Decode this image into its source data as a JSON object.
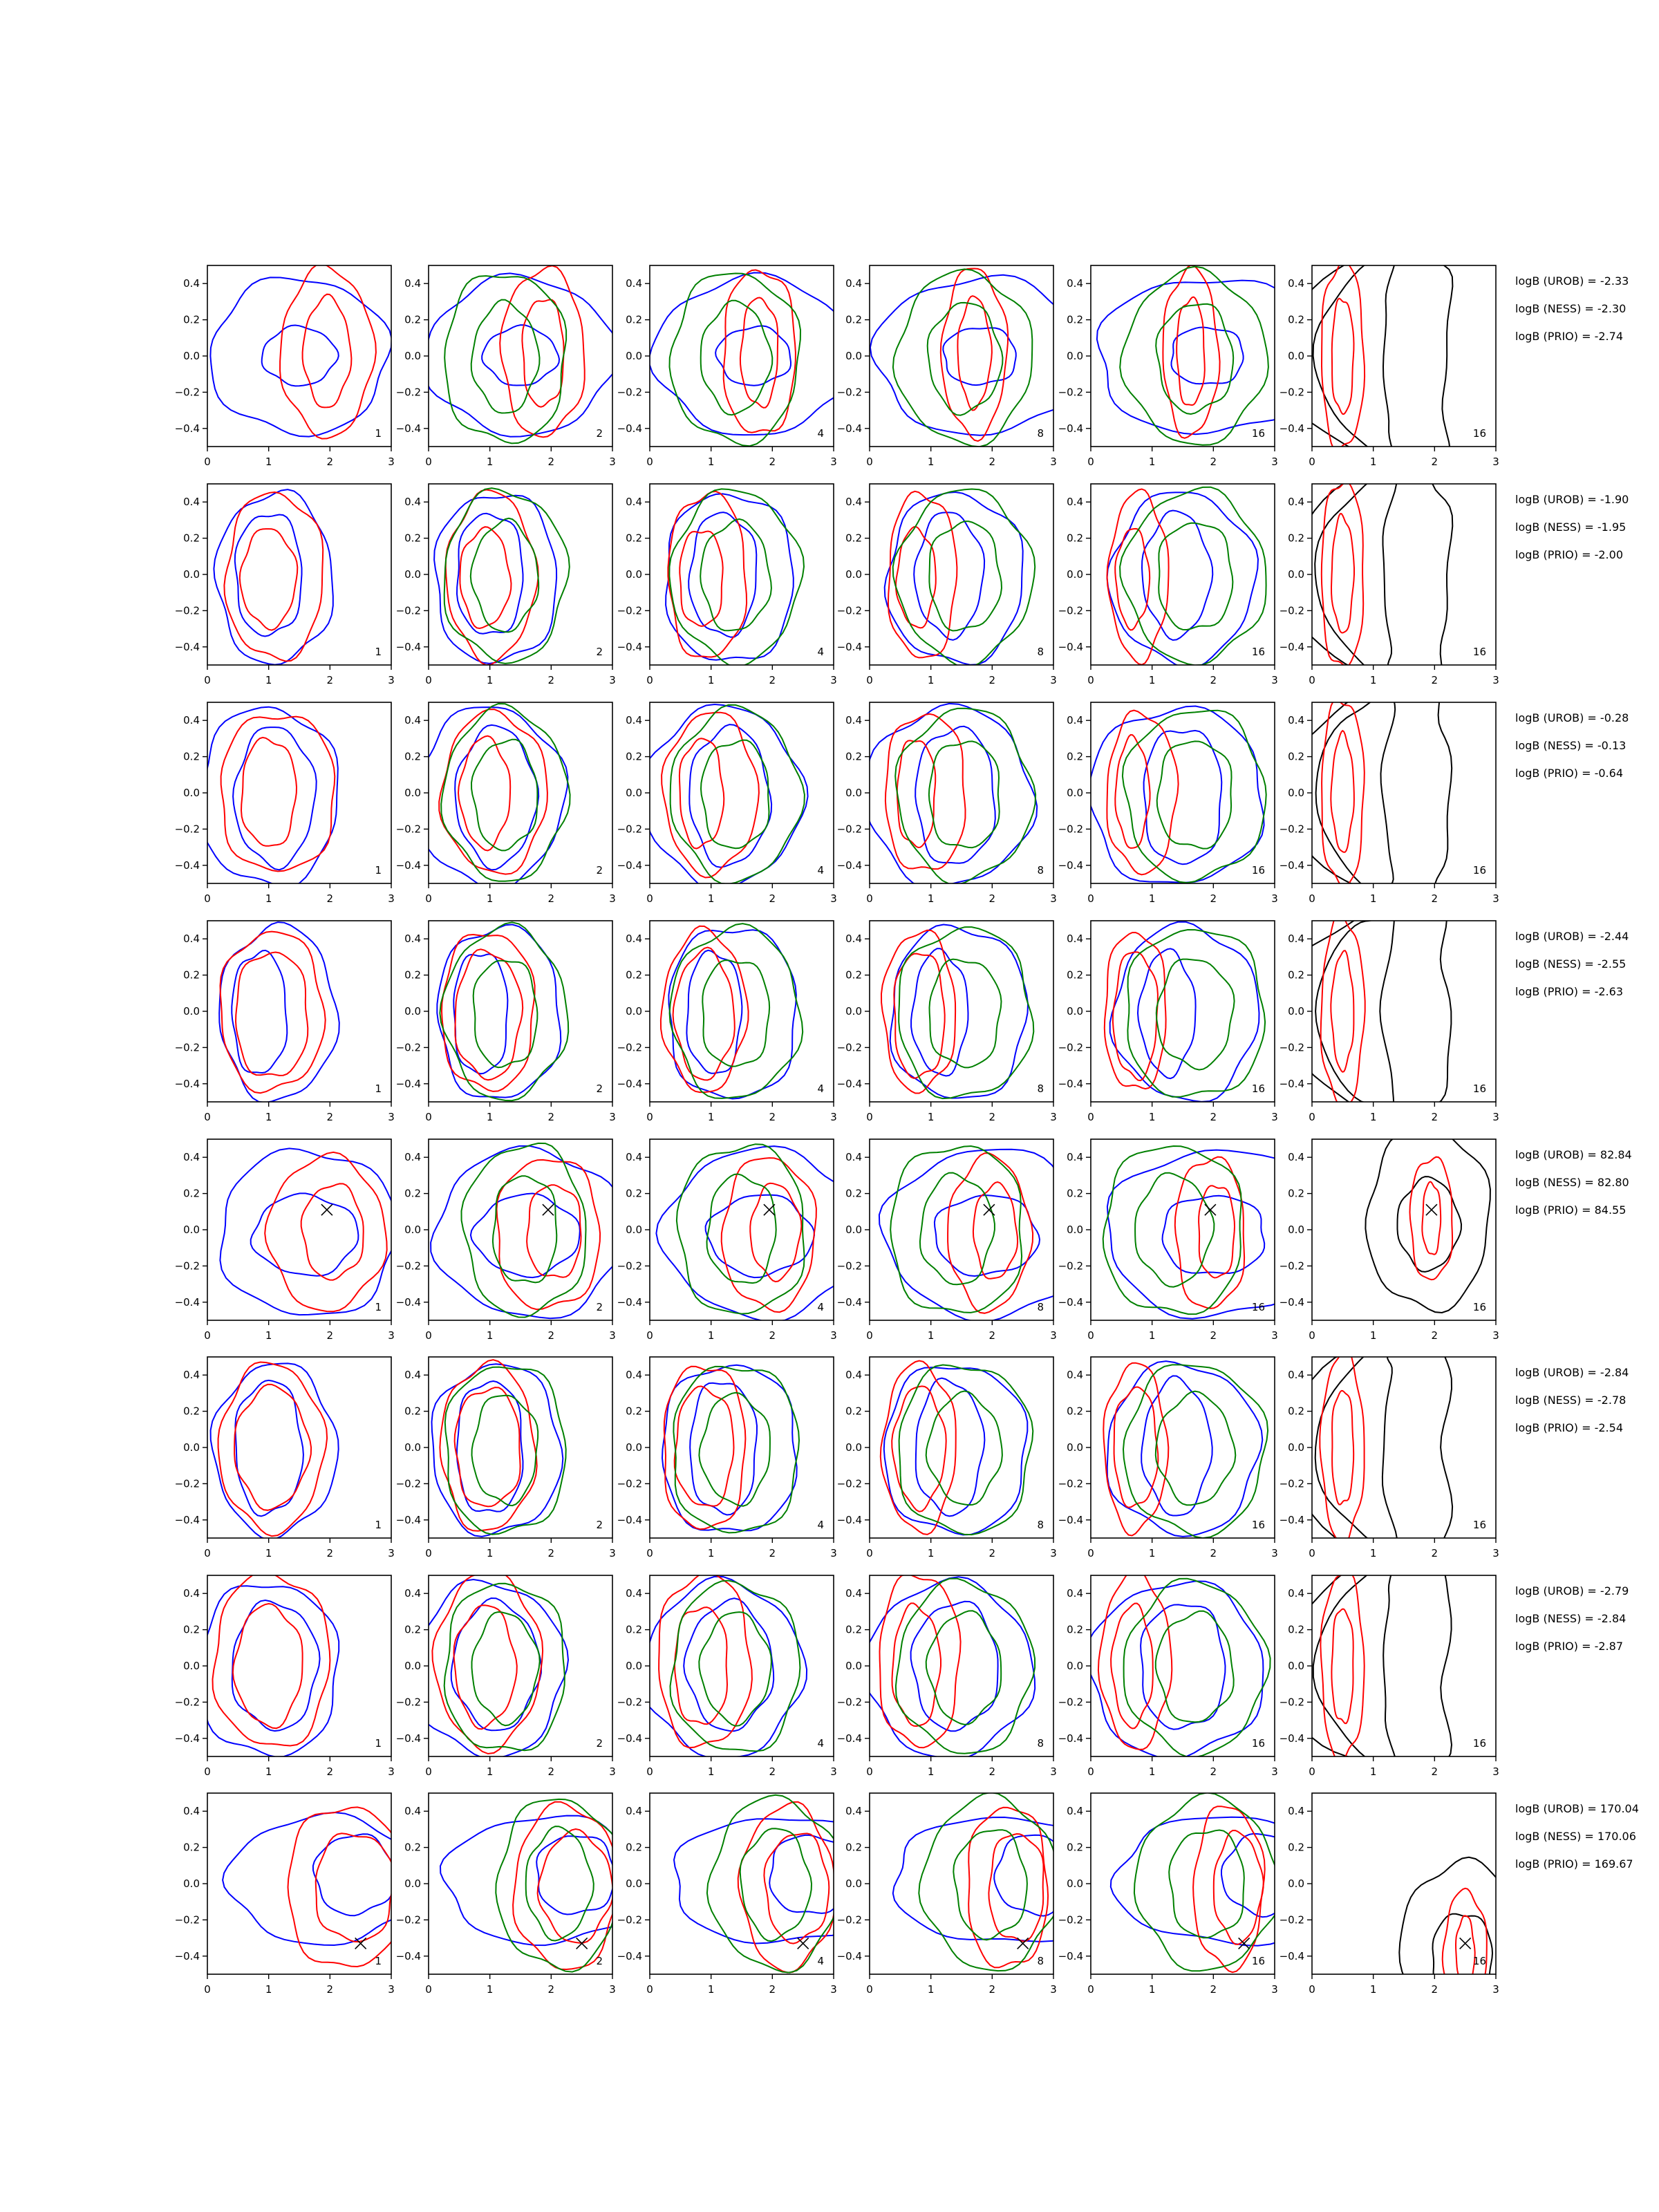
{
  "chart_data": {
    "type": "contour-grid",
    "rows": 8,
    "cols": 6,
    "panel_numbers": [
      "1",
      "2",
      "4",
      "8",
      "16",
      "16"
    ],
    "xlim": [
      0,
      3
    ],
    "ylim": [
      -0.5,
      0.5
    ],
    "xticks": [
      "0",
      "1",
      "2",
      "3"
    ],
    "yticks": [
      "0.4",
      "0.2",
      "0.0",
      "−0.2",
      "−0.4"
    ],
    "colors": {
      "blue": "#0000ff",
      "red": "#ff0000",
      "green": "#008000",
      "black": "#000000",
      "axis": "#000000"
    },
    "contour_sets": [
      {
        "blue": [
          [
            1.5,
            0.0,
            1.45,
            0.43
          ],
          [
            1.5,
            0.0,
            0.6,
            0.16
          ]
        ],
        "red": [
          [
            1.95,
            0.02,
            0.75,
            0.46
          ],
          [
            1.95,
            0.02,
            0.38,
            0.3
          ]
        ]
      },
      {
        "blue": [
          [
            1.1,
            -0.02,
            0.95,
            0.47
          ],
          [
            1.0,
            0.0,
            0.55,
            0.34
          ]
        ],
        "red": [
          [
            1.1,
            -0.01,
            0.8,
            0.46
          ],
          [
            1.0,
            -0.02,
            0.45,
            0.27
          ]
        ]
      },
      {
        "blue": [
          [
            1.0,
            -0.02,
            1.15,
            0.49
          ],
          [
            1.1,
            -0.02,
            0.65,
            0.38
          ]
        ],
        "red": [
          [
            1.15,
            0.0,
            0.95,
            0.44
          ],
          [
            1.0,
            0.0,
            0.45,
            0.3
          ]
        ]
      },
      {
        "blue": [
          [
            1.15,
            -0.01,
            0.95,
            0.48
          ],
          [
            0.85,
            -0.01,
            0.45,
            0.34
          ]
        ],
        "red": [
          [
            1.05,
            0.0,
            0.85,
            0.44
          ],
          [
            1.05,
            -0.02,
            0.6,
            0.35
          ]
        ]
      },
      {
        "blue": [
          [
            1.65,
            -0.02,
            1.45,
            0.46
          ],
          [
            1.6,
            -0.03,
            0.85,
            0.22
          ]
        ],
        "red": [
          [
            1.95,
            -0.02,
            0.95,
            0.42
          ],
          [
            2.05,
            -0.01,
            0.5,
            0.26
          ]
        ],
        "marker": [
          1.95,
          0.11
        ]
      },
      {
        "blue": [
          [
            1.1,
            -0.01,
            1.0,
            0.47
          ],
          [
            1.0,
            0.0,
            0.55,
            0.37
          ]
        ],
        "red": [
          [
            1.05,
            0.0,
            0.85,
            0.46
          ],
          [
            1.05,
            0.0,
            0.6,
            0.33
          ]
        ]
      },
      {
        "blue": [
          [
            1.0,
            -0.02,
            1.15,
            0.48
          ],
          [
            1.1,
            0.0,
            0.7,
            0.35
          ]
        ],
        "red": [
          [
            1.05,
            0.03,
            0.95,
            0.48
          ],
          [
            1.0,
            0.0,
            0.55,
            0.33
          ]
        ]
      },
      {
        "blue": [
          [
            1.9,
            0.02,
            1.55,
            0.35
          ],
          [
            2.4,
            0.05,
            0.65,
            0.22
          ]
        ],
        "red": [
          [
            2.25,
            -0.02,
            0.95,
            0.45
          ],
          [
            2.4,
            -0.02,
            0.65,
            0.3
          ]
        ],
        "marker": [
          2.5,
          -0.33
        ]
      }
    ],
    "annotations": [
      [
        "logB (UROB) = -2.33",
        "logB (NESS) = -2.30",
        "logB (PRIO) = -2.74"
      ],
      [
        "logB (UROB) = -1.90",
        "logB (NESS) = -1.95",
        "logB (PRIO) = -2.00"
      ],
      [
        "logB (UROB) = -0.28",
        "logB (NESS) = -0.13",
        "logB (PRIO) = -0.64"
      ],
      [
        "logB (UROB) = -2.44",
        "logB (NESS) = -2.55",
        "logB (PRIO) = -2.63"
      ],
      [
        "logB (UROB) = 82.84",
        "logB (NESS) = 82.80",
        "logB (PRIO) = 84.55"
      ],
      [
        "logB (UROB) = -2.84",
        "logB (NESS) = -2.78",
        "logB (PRIO) = -2.54"
      ],
      [
        "logB (UROB) = -2.79",
        "logB (NESS) = -2.84",
        "logB (PRIO) = -2.87"
      ],
      [
        "logB (UROB) = 170.04",
        "logB (NESS) = 170.06",
        "logB (PRIO) = 169.67"
      ]
    ]
  }
}
